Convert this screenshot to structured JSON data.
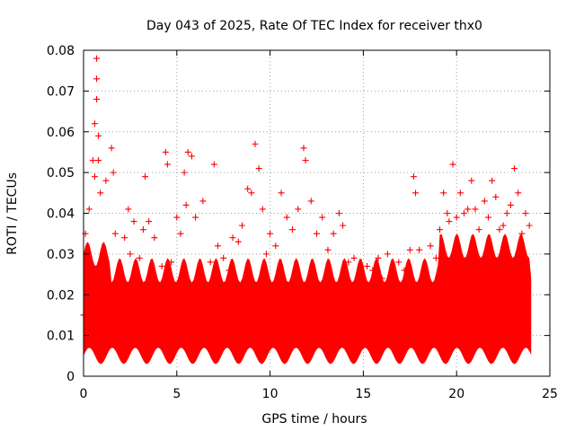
{
  "chart_data": {
    "type": "scatter",
    "title": "Day 043 of 2025, Rate Of TEC Index for receiver thx0",
    "xlabel": "GPS time / hours",
    "ylabel": "ROTI / TECUs",
    "xlim": [
      0,
      25
    ],
    "ylim": [
      0,
      0.08
    ],
    "x_ticks": [
      0,
      5,
      10,
      15,
      20,
      25
    ],
    "x_tick_labels": [
      "0",
      "5",
      "10",
      "15",
      "20",
      "25"
    ],
    "y_ticks": [
      0,
      0.01,
      0.02,
      0.03,
      0.04,
      0.05,
      0.06,
      0.07,
      0.08
    ],
    "y_tick_labels": [
      "0",
      "0.01",
      "0.02",
      "0.03",
      "0.04",
      "0.05",
      "0.06",
      "0.07",
      "0.08"
    ],
    "grid": true,
    "marker": "plus",
    "color": "#ff0000",
    "legend": "none",
    "series": [
      {
        "x": [
          0.0,
          0.1,
          0.3,
          0.5,
          0.6,
          0.6,
          0.7,
          0.7,
          0.7,
          0.8,
          0.8,
          0.9,
          1.0,
          1.2,
          1.5,
          1.6,
          1.7,
          2.0,
          2.2,
          2.4,
          2.5,
          2.7,
          3.0,
          3.2,
          3.3,
          3.5,
          3.8,
          4.0,
          4.2,
          4.4,
          4.5,
          4.7,
          5.0,
          5.2,
          5.4,
          5.5,
          5.6,
          5.8,
          6.0,
          6.4,
          6.8,
          7.0,
          7.2,
          7.5,
          7.8,
          8.0,
          8.3,
          8.5,
          8.8,
          9.0,
          9.2,
          9.4,
          9.6,
          9.8,
          10.0,
          10.3,
          10.6,
          10.9,
          11.2,
          11.5,
          11.8,
          11.9,
          12.2,
          12.5,
          12.8,
          13.1,
          13.4,
          13.7,
          13.9,
          14.2,
          14.5,
          14.8,
          15.0,
          15.2,
          15.5,
          15.8,
          16.0,
          16.3,
          16.6,
          16.9,
          17.2,
          17.5,
          17.7,
          17.8,
          18.0,
          18.3,
          18.6,
          18.9,
          19.1,
          19.3,
          19.5,
          19.6,
          19.8,
          20.0,
          20.2,
          20.4,
          20.6,
          20.8,
          21.0,
          21.2,
          21.5,
          21.7,
          21.9,
          22.1,
          22.3,
          22.5,
          22.7,
          22.9,
          23.1,
          23.3,
          23.5,
          23.7,
          23.9
        ],
        "y": [
          0.015,
          0.035,
          0.041,
          0.053,
          0.049,
          0.062,
          0.078,
          0.073,
          0.068,
          0.059,
          0.053,
          0.045,
          0.026,
          0.048,
          0.056,
          0.05,
          0.035,
          0.021,
          0.034,
          0.041,
          0.03,
          0.038,
          0.029,
          0.036,
          0.049,
          0.038,
          0.034,
          0.022,
          0.027,
          0.055,
          0.052,
          0.028,
          0.039,
          0.035,
          0.05,
          0.042,
          0.055,
          0.054,
          0.039,
          0.043,
          0.028,
          0.052,
          0.032,
          0.029,
          0.026,
          0.034,
          0.033,
          0.037,
          0.046,
          0.045,
          0.057,
          0.051,
          0.041,
          0.03,
          0.035,
          0.032,
          0.045,
          0.039,
          0.036,
          0.041,
          0.056,
          0.053,
          0.043,
          0.035,
          0.039,
          0.031,
          0.035,
          0.04,
          0.037,
          0.028,
          0.029,
          0.025,
          0.024,
          0.027,
          0.026,
          0.029,
          0.024,
          0.03,
          0.025,
          0.028,
          0.026,
          0.031,
          0.049,
          0.045,
          0.031,
          0.027,
          0.032,
          0.029,
          0.036,
          0.045,
          0.04,
          0.038,
          0.052,
          0.039,
          0.045,
          0.04,
          0.041,
          0.048,
          0.041,
          0.036,
          0.043,
          0.039,
          0.048,
          0.044,
          0.036,
          0.037,
          0.04,
          0.042,
          0.051,
          0.045,
          0.035,
          0.04,
          0.037
        ]
      }
    ]
  }
}
